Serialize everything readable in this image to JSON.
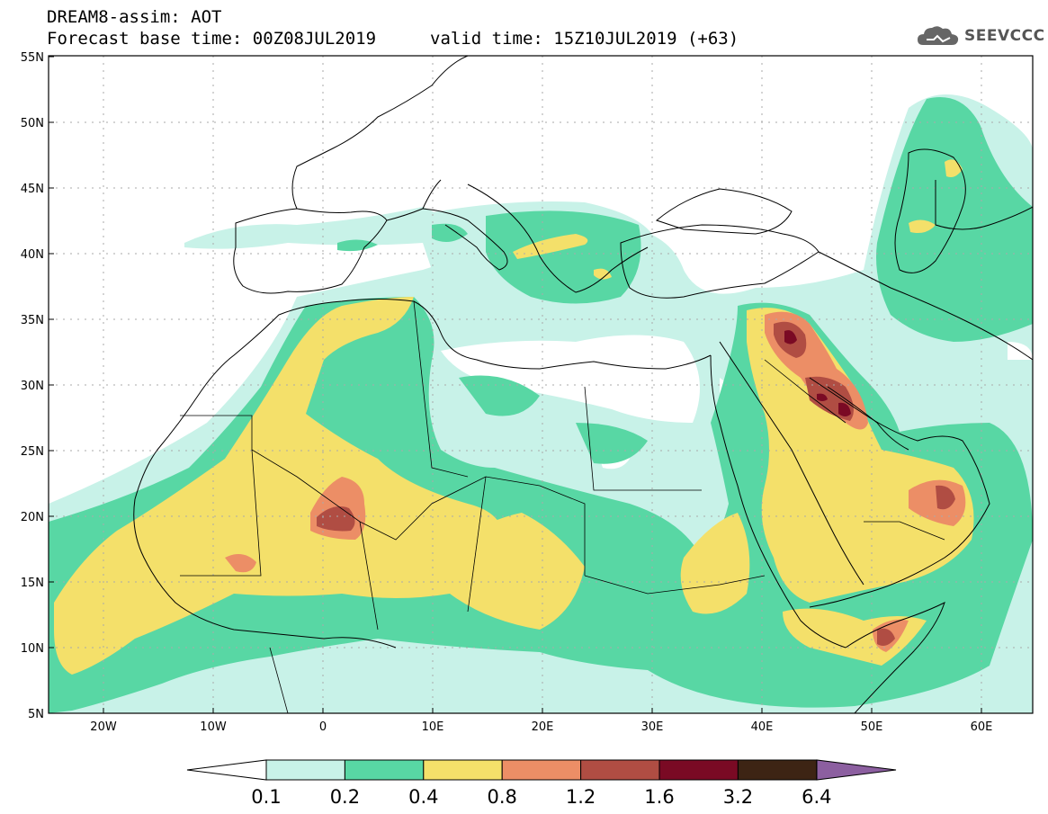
{
  "header": {
    "title_line1": "DREAM8-assim: AOT",
    "base_time": "Forecast base time: 00Z08JUL2019",
    "valid_time": "valid time: 15Z10JUL2019 (+63)",
    "logo_text": "SEEVCCC"
  },
  "axes": {
    "lat_labels": [
      "55N",
      "50N",
      "45N",
      "40N",
      "35N",
      "30N",
      "25N",
      "20N",
      "15N",
      "10N",
      "5N"
    ],
    "lon_labels": [
      "20W",
      "10W",
      "0",
      "10E",
      "20E",
      "30E",
      "40E",
      "50E",
      "60E"
    ]
  },
  "colorbar": {
    "labels": [
      "0.1",
      "0.2",
      "0.4",
      "0.8",
      "1.2",
      "1.6",
      "3.2",
      "6.4"
    ],
    "colors": [
      "#c8f2e8",
      "#58d7a4",
      "#f4e06a",
      "#ec8e66",
      "#b04d43",
      "#7a0a24",
      "#3d2414"
    ],
    "under_color": "#ffffff",
    "over_color": "#8c5fa0"
  },
  "colors": {
    "land_outline": "#000000",
    "grid": "#aaaaaa"
  }
}
